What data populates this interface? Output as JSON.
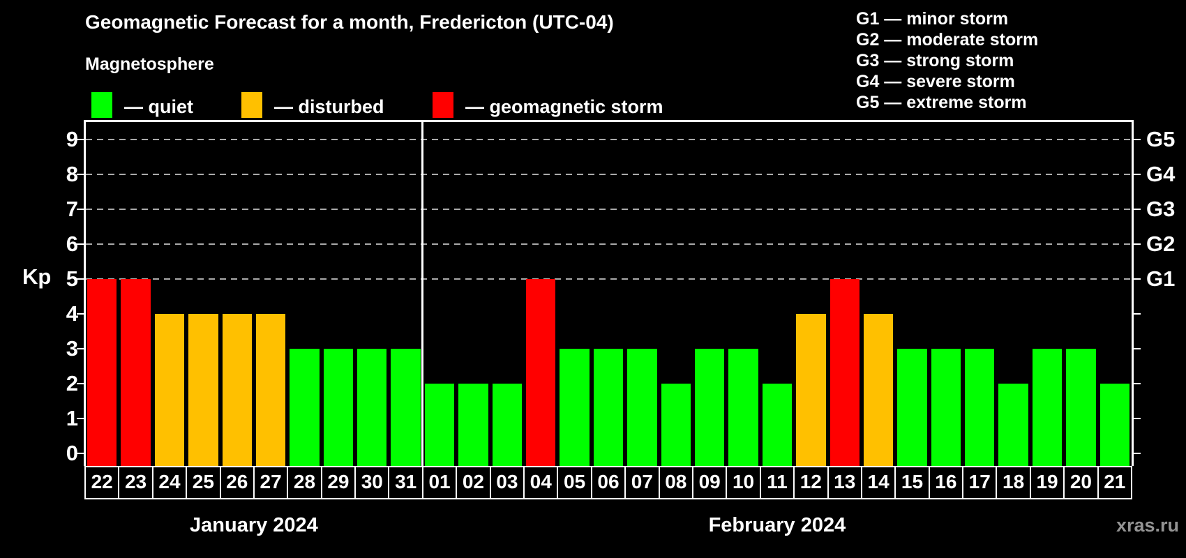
{
  "title": "Geomagnetic Forecast for a month, Fredericton (UTC-04)",
  "subtitle": "Magnetosphere",
  "legend": {
    "items": [
      {
        "id": "quiet",
        "label": "— quiet",
        "color": "#00ff00"
      },
      {
        "id": "disturbed",
        "label": "— disturbed",
        "color": "#ffc000"
      },
      {
        "id": "storm",
        "label": "— geomagnetic storm",
        "color": "#ff0000"
      }
    ]
  },
  "g_scale_legend": [
    "G1 — minor storm",
    "G2 — moderate storm",
    "G3 — strong storm",
    "G4 — severe storm",
    "G5 — extreme storm"
  ],
  "watermark": "xras.ru",
  "chart_data": {
    "type": "bar",
    "title": "Geomagnetic Forecast for a month, Fredericton (UTC-04)",
    "ylabel": "Kp",
    "ylim": [
      0,
      9
    ],
    "y_ticks": [
      0,
      1,
      2,
      3,
      4,
      5,
      6,
      7,
      8,
      9
    ],
    "gridlines_kp": [
      5,
      6,
      7,
      8,
      9
    ],
    "grid": "dashed",
    "right_axis": [
      {
        "kp": 5,
        "label": "G1"
      },
      {
        "kp": 6,
        "label": "G2"
      },
      {
        "kp": 7,
        "label": "G3"
      },
      {
        "kp": 8,
        "label": "G4"
      },
      {
        "kp": 9,
        "label": "G5"
      }
    ],
    "status_colors": {
      "quiet": "#00ff00",
      "disturbed": "#ffc000",
      "storm": "#ff0000"
    },
    "months": [
      {
        "label": "January 2024",
        "days": [
          {
            "day": "22",
            "kp": 5,
            "status": "storm"
          },
          {
            "day": "23",
            "kp": 5,
            "status": "storm"
          },
          {
            "day": "24",
            "kp": 4,
            "status": "disturbed"
          },
          {
            "day": "25",
            "kp": 4,
            "status": "disturbed"
          },
          {
            "day": "26",
            "kp": 4,
            "status": "disturbed"
          },
          {
            "day": "27",
            "kp": 4,
            "status": "disturbed"
          },
          {
            "day": "28",
            "kp": 3,
            "status": "quiet"
          },
          {
            "day": "29",
            "kp": 3,
            "status": "quiet"
          },
          {
            "day": "30",
            "kp": 3,
            "status": "quiet"
          },
          {
            "day": "31",
            "kp": 3,
            "status": "quiet"
          }
        ]
      },
      {
        "label": "February 2024",
        "days": [
          {
            "day": "01",
            "kp": 2,
            "status": "quiet"
          },
          {
            "day": "02",
            "kp": 2,
            "status": "quiet"
          },
          {
            "day": "03",
            "kp": 2,
            "status": "quiet"
          },
          {
            "day": "04",
            "kp": 5,
            "status": "storm"
          },
          {
            "day": "05",
            "kp": 3,
            "status": "quiet"
          },
          {
            "day": "06",
            "kp": 3,
            "status": "quiet"
          },
          {
            "day": "07",
            "kp": 3,
            "status": "quiet"
          },
          {
            "day": "08",
            "kp": 2,
            "status": "quiet"
          },
          {
            "day": "09",
            "kp": 3,
            "status": "quiet"
          },
          {
            "day": "10",
            "kp": 3,
            "status": "quiet"
          },
          {
            "day": "11",
            "kp": 2,
            "status": "quiet"
          },
          {
            "day": "12",
            "kp": 4,
            "status": "disturbed"
          },
          {
            "day": "13",
            "kp": 5,
            "status": "storm"
          },
          {
            "day": "14",
            "kp": 4,
            "status": "disturbed"
          },
          {
            "day": "15",
            "kp": 3,
            "status": "quiet"
          },
          {
            "day": "16",
            "kp": 3,
            "status": "quiet"
          },
          {
            "day": "17",
            "kp": 3,
            "status": "quiet"
          },
          {
            "day": "18",
            "kp": 2,
            "status": "quiet"
          },
          {
            "day": "19",
            "kp": 3,
            "status": "quiet"
          },
          {
            "day": "20",
            "kp": 3,
            "status": "quiet"
          },
          {
            "day": "21",
            "kp": 2,
            "status": "quiet"
          }
        ]
      }
    ]
  }
}
